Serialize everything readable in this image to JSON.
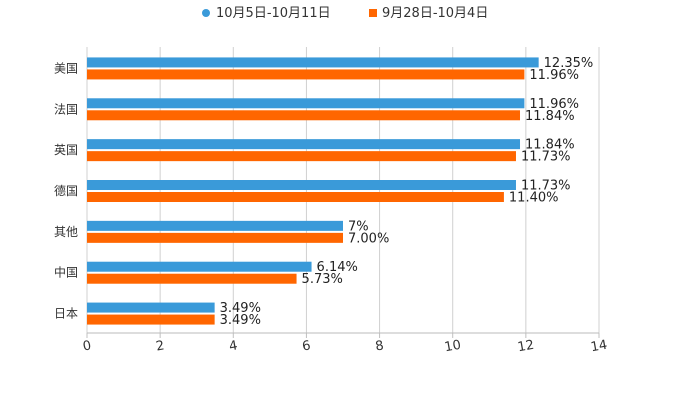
{
  "chart_data": {
    "type": "bar",
    "orientation": "horizontal",
    "title": "",
    "xlabel": "",
    "ylabel": "",
    "xlim": [
      0,
      14
    ],
    "x_ticks": [
      "0",
      "2",
      "4",
      "6",
      "8",
      "10",
      "12",
      "14"
    ],
    "grid": true,
    "legend_position": "top-center",
    "categories": [
      "美国",
      "法国",
      "英国",
      "德国",
      "其他",
      "中国",
      "日本"
    ],
    "series": [
      {
        "name": "10月5日-10月11日",
        "color": "#3a9ad9",
        "values": [
          12.35,
          11.96,
          11.84,
          11.73,
          7,
          6.14,
          3.49
        ],
        "labels": [
          "12.35%",
          "11.96%",
          "11.84%",
          "11.73%",
          "7%",
          "6.14%",
          "3.49%"
        ]
      },
      {
        "name": "9月28日-10月4日",
        "color": "#ff6600",
        "values": [
          11.96,
          11.84,
          11.73,
          11.4,
          7,
          5.73,
          3.49
        ],
        "labels": [
          "11.96%",
          "11.84%",
          "11.73%",
          "11.40%",
          "7.00%",
          "5.73%",
          "3.49%"
        ]
      }
    ]
  }
}
